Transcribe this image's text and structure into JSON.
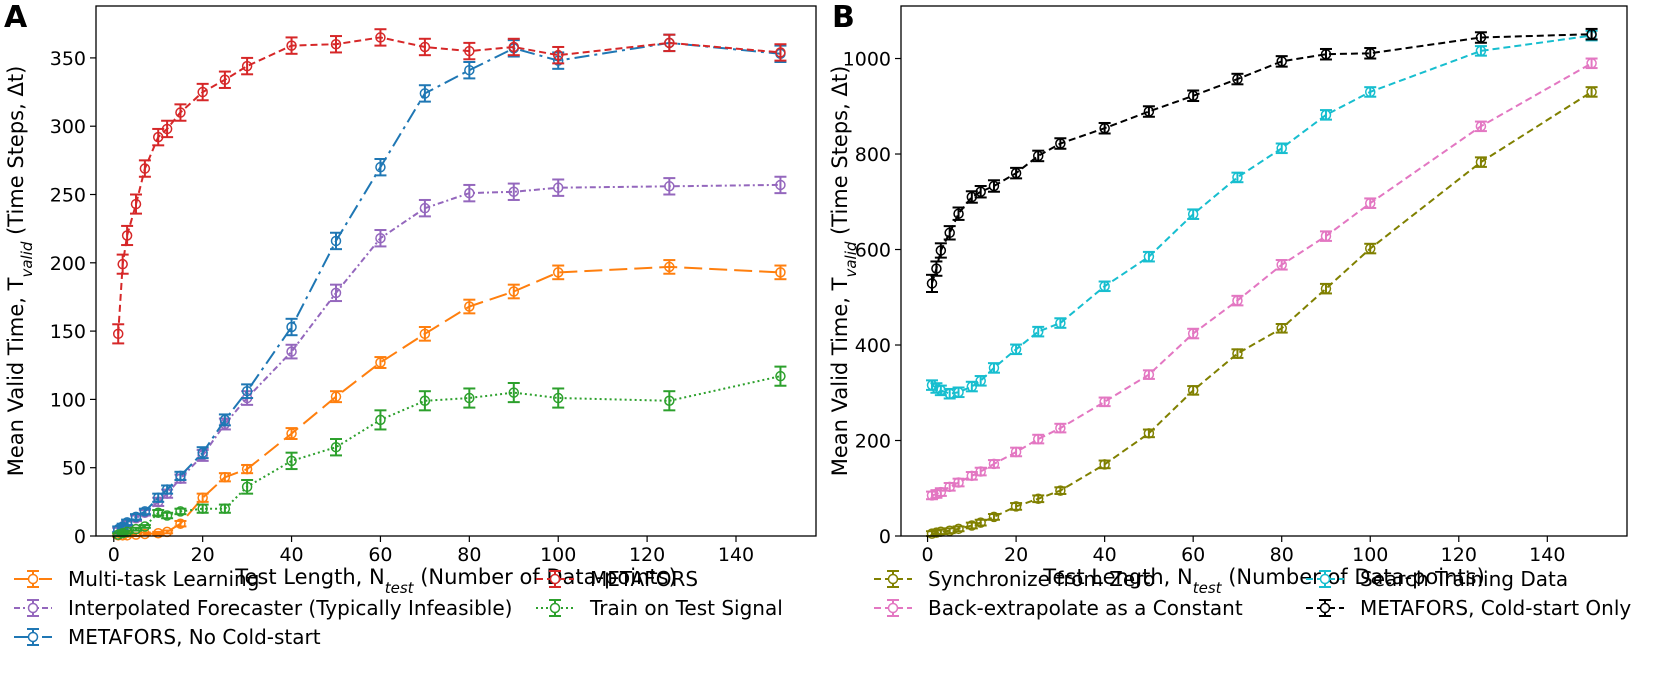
{
  "chart_data": [
    {
      "type": "line",
      "panel": "A",
      "xlabel_parts": [
        "Test Length, N",
        "test",
        " (Number of Data-points)"
      ],
      "ylabel_parts": [
        "Mean Valid Time, T",
        "valid",
        " (Time Steps, Δt)"
      ],
      "xlim": [
        -4,
        158
      ],
      "ylim": [
        0,
        388
      ],
      "xticks": [
        0,
        20,
        40,
        60,
        80,
        100,
        120,
        140
      ],
      "yticks": [
        0,
        50,
        100,
        150,
        200,
        250,
        300,
        350
      ],
      "grid": false,
      "series": [
        {
          "name": "Multi-task Learning",
          "color": "#ff7f0e",
          "style": "dashed-long",
          "x": [
            1,
            2,
            3,
            5,
            7,
            10,
            12,
            15,
            20,
            25,
            30,
            40,
            50,
            60,
            70,
            80,
            90,
            100,
            125,
            150
          ],
          "y": [
            0.5,
            0.5,
            0.5,
            1,
            1.5,
            2,
            3,
            9,
            28,
            43,
            49,
            75,
            102,
            127,
            148,
            168,
            179,
            193,
            197,
            193
          ],
          "err": [
            1,
            1,
            1,
            1,
            1,
            1,
            1,
            2,
            3,
            3,
            3,
            4,
            4,
            4,
            5,
            5,
            5,
            5,
            5,
            5
          ]
        },
        {
          "name": "Interpolated Forecaster (Typically Infeasible)",
          "color": "#9467bd",
          "style": "dashdot-dense",
          "x": [
            1,
            2,
            3,
            5,
            7,
            10,
            12,
            15,
            20,
            25,
            30,
            40,
            50,
            60,
            70,
            80,
            90,
            100,
            125,
            150
          ],
          "y": [
            4,
            6,
            9,
            13,
            17,
            25,
            31,
            42,
            59,
            82,
            101,
            135,
            178,
            218,
            240,
            251,
            252,
            255,
            256,
            257
          ],
          "err": [
            2,
            2,
            2,
            2,
            2,
            3,
            3,
            3,
            4,
            4,
            5,
            5,
            6,
            6,
            6,
            6,
            6,
            6,
            6,
            6
          ]
        },
        {
          "name": "METAFORS, No Cold-start",
          "color": "#1f77b4",
          "style": "dashdot",
          "x": [
            1,
            2,
            3,
            5,
            7,
            10,
            12,
            15,
            20,
            25,
            30,
            40,
            50,
            60,
            70,
            80,
            90,
            100,
            125,
            150
          ],
          "y": [
            5,
            7,
            10,
            14,
            18,
            28,
            34,
            44,
            61,
            85,
            106,
            153,
            216,
            270,
            324,
            341,
            357,
            348,
            361,
            353
          ],
          "err": [
            2,
            2,
            2,
            2,
            2,
            3,
            3,
            3,
            4,
            4,
            5,
            6,
            6,
            6,
            6,
            6,
            6,
            6,
            6,
            6
          ]
        },
        {
          "name": "METAFORS",
          "color": "#d62728",
          "style": "dashed",
          "x": [
            1,
            2,
            3,
            5,
            7,
            10,
            12,
            15,
            20,
            25,
            30,
            40,
            50,
            60,
            70,
            80,
            90,
            100,
            125,
            150
          ],
          "y": [
            148,
            199,
            220,
            243,
            269,
            292,
            298,
            310,
            325,
            334,
            344,
            359,
            360,
            365,
            358,
            355,
            358,
            352,
            361,
            354
          ],
          "err": [
            7,
            7,
            7,
            7,
            6,
            6,
            6,
            6,
            6,
            6,
            6,
            6,
            6,
            6,
            6,
            6,
            6,
            6,
            6,
            6
          ]
        },
        {
          "name": "Train on Test Signal",
          "color": "#2ca02c",
          "style": "dotted",
          "x": [
            1,
            2,
            3,
            5,
            7,
            10,
            12,
            15,
            20,
            25,
            30,
            40,
            50,
            60,
            70,
            80,
            90,
            100,
            125,
            150
          ],
          "y": [
            1,
            2,
            3,
            5,
            7,
            17,
            15,
            18,
            20,
            20,
            36,
            55,
            65,
            85,
            99,
            101,
            105,
            101,
            99,
            117
          ],
          "err": [
            1,
            1,
            1,
            1,
            1,
            2,
            2,
            2,
            3,
            3,
            5,
            6,
            6,
            7,
            7,
            7,
            7,
            7,
            7,
            7
          ]
        }
      ],
      "legend": {
        "placement": "below",
        "columns": [
          [
            "Multi-task Learning",
            "Interpolated Forecaster (Typically Infeasible)",
            "METAFORS, No Cold-start"
          ],
          [
            "METAFORS",
            "Train on Test Signal"
          ]
        ]
      }
    },
    {
      "type": "line",
      "panel": "B",
      "xlabel_parts": [
        "Test Length, N",
        "test",
        " (Number of Data-points)"
      ],
      "ylabel_parts": [
        "Mean Valid Time, T",
        "valid",
        " (Time Steps, Δt)"
      ],
      "xlim": [
        -6,
        158
      ],
      "ylim": [
        0,
        1110
      ],
      "xticks": [
        0,
        20,
        40,
        60,
        80,
        100,
        120,
        140
      ],
      "yticks": [
        0,
        200,
        400,
        600,
        800,
        1000
      ],
      "grid": false,
      "series": [
        {
          "name": "Synchronize from Zero",
          "color": "#808000",
          "style": "dashed",
          "x": [
            1,
            2,
            3,
            5,
            7,
            10,
            12,
            15,
            20,
            25,
            30,
            40,
            50,
            60,
            70,
            80,
            90,
            100,
            125,
            150
          ],
          "y": [
            5,
            7,
            9,
            11,
            15,
            22,
            28,
            40,
            62,
            78,
            95,
            150,
            215,
            305,
            382,
            435,
            518,
            602,
            783,
            930
          ],
          "err": [
            5,
            5,
            5,
            5,
            5,
            6,
            6,
            6,
            7,
            7,
            7,
            8,
            8,
            9,
            9,
            9,
            10,
            10,
            10,
            10
          ]
        },
        {
          "name": "Back-extrapolate as a Constant",
          "color": "#e377c2",
          "style": "dashed",
          "x": [
            1,
            2,
            3,
            5,
            7,
            10,
            12,
            15,
            20,
            25,
            30,
            40,
            50,
            60,
            70,
            80,
            90,
            100,
            125,
            150
          ],
          "y": [
            85,
            88,
            92,
            103,
            112,
            126,
            135,
            151,
            176,
            203,
            226,
            281,
            338,
            424,
            493,
            568,
            628,
            697,
            858,
            990
          ],
          "err": [
            8,
            8,
            8,
            8,
            8,
            8,
            8,
            8,
            9,
            9,
            9,
            9,
            9,
            10,
            10,
            10,
            10,
            10,
            10,
            10
          ]
        },
        {
          "name": "Search Training Data",
          "color": "#17becf",
          "style": "dashed",
          "x": [
            1,
            2,
            3,
            5,
            7,
            10,
            12,
            15,
            20,
            25,
            30,
            40,
            50,
            60,
            70,
            80,
            90,
            100,
            125,
            150
          ],
          "y": [
            316,
            310,
            305,
            298,
            301,
            313,
            325,
            352,
            391,
            428,
            446,
            523,
            585,
            674,
            751,
            812,
            882,
            930,
            1016,
            1048
          ],
          "err": [
            10,
            10,
            10,
            10,
            10,
            10,
            10,
            10,
            10,
            10,
            10,
            10,
            10,
            10,
            10,
            10,
            10,
            10,
            10,
            10
          ]
        },
        {
          "name": "METAFORS, Cold-start Only",
          "color": "#000000",
          "style": "dashed",
          "x": [
            1,
            2,
            3,
            5,
            7,
            10,
            12,
            15,
            20,
            25,
            30,
            40,
            50,
            60,
            70,
            80,
            90,
            100,
            125,
            150
          ],
          "y": [
            529,
            560,
            598,
            635,
            675,
            710,
            721,
            733,
            760,
            796,
            822,
            854,
            889,
            922,
            957,
            994,
            1009,
            1011,
            1044,
            1051
          ],
          "err": [
            18,
            15,
            15,
            14,
            13,
            12,
            12,
            12,
            11,
            11,
            11,
            11,
            11,
            11,
            11,
            11,
            11,
            11,
            11,
            11
          ]
        }
      ],
      "legend": {
        "placement": "below",
        "columns": [
          [
            "Synchronize from Zero",
            "Back-extrapolate as a Constant"
          ],
          [
            "Search Training Data",
            "METAFORS, Cold-start Only"
          ]
        ]
      }
    }
  ]
}
